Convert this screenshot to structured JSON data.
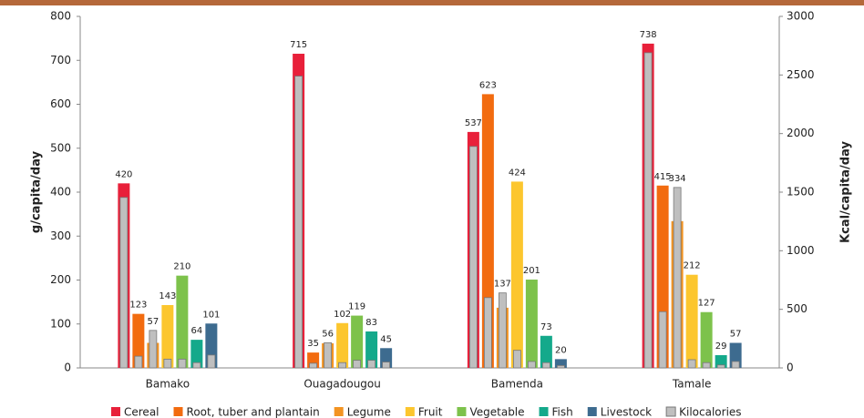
{
  "chart_data": {
    "type": "bar",
    "y_label": "g/capita/day",
    "y2_label": "Kcal/capita/day",
    "categories": [
      "Bamako",
      "Ouagadougou",
      "Bamenda",
      "Tamale"
    ],
    "series": [
      {
        "name": "Cereal",
        "color": "#e8203a",
        "values": [
          420,
          715,
          537,
          738
        ]
      },
      {
        "name": "Root, tuber and plantain",
        "color": "#f26b0f",
        "values": [
          123,
          35,
          623,
          415
        ]
      },
      {
        "name": "Legume",
        "color": "#f39422",
        "values": [
          57,
          56,
          137,
          334
        ]
      },
      {
        "name": "Fruit",
        "color": "#fcc62e",
        "values": [
          143,
          102,
          424,
          212
        ]
      },
      {
        "name": "Vegetable",
        "color": "#7dc24b",
        "values": [
          210,
          119,
          201,
          127
        ]
      },
      {
        "name": "Fish",
        "color": "#14a98b",
        "values": [
          64,
          83,
          73,
          29
        ]
      },
      {
        "name": "Livestock",
        "color": "#3d6b8f",
        "values": [
          101,
          45,
          20,
          57
        ]
      }
    ],
    "kilocalories": {
      "name": "Kilocalories",
      "color": "#bfbfbf",
      "axis": "y2",
      "values": [
        [
          1455,
          100,
          320,
          75,
          75,
          45,
          110
        ],
        [
          2490,
          40,
          215,
          45,
          65,
          65,
          50
        ],
        [
          1890,
          600,
          640,
          150,
          55,
          45,
          20
        ],
        [
          2690,
          480,
          1540,
          70,
          45,
          25,
          55
        ]
      ]
    },
    "ylim": [
      0,
      800
    ],
    "yticks": [
      0,
      100,
      200,
      300,
      400,
      500,
      600,
      700,
      800
    ],
    "y2lim": [
      0,
      3000
    ],
    "y2ticks": [
      0,
      500,
      1000,
      1500,
      2000,
      2500,
      3000
    ],
    "legend": "bottom"
  }
}
